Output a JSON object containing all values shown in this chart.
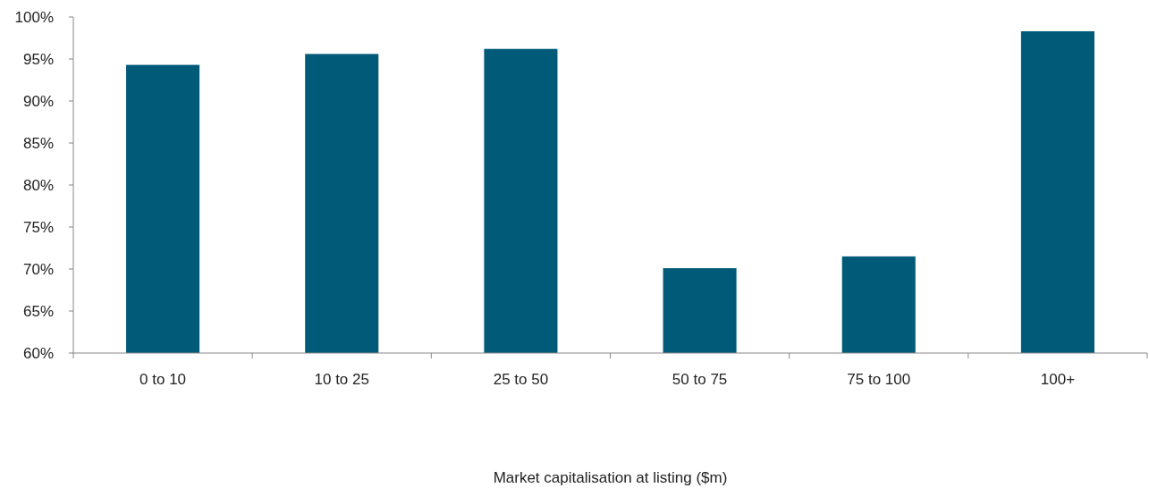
{
  "chart_data": {
    "type": "bar",
    "annotations": [
      "Market capitalisation at listing ($m)"
    ],
    "categories": [
      "0 to 10",
      "10 to 25",
      "25 to 50",
      "50 to 75",
      "75 to 100",
      "100+"
    ],
    "values": [
      94.3,
      95.6,
      96.2,
      70.1,
      71.5,
      98.3
    ],
    "color": "#005a78",
    "ylim": [
      60,
      100
    ],
    "yticks": [
      {
        "value": 60,
        "label": "60%"
      },
      {
        "value": 65,
        "label": "65%"
      },
      {
        "value": 70,
        "label": "70%"
      },
      {
        "value": 75,
        "label": "75%"
      },
      {
        "value": 80,
        "label": "80%"
      },
      {
        "value": 85,
        "label": "85%"
      },
      {
        "value": 90,
        "label": "90%"
      },
      {
        "value": 95,
        "label": "95%"
      },
      {
        "value": 100,
        "label": "100%"
      }
    ],
    "grid": false
  }
}
